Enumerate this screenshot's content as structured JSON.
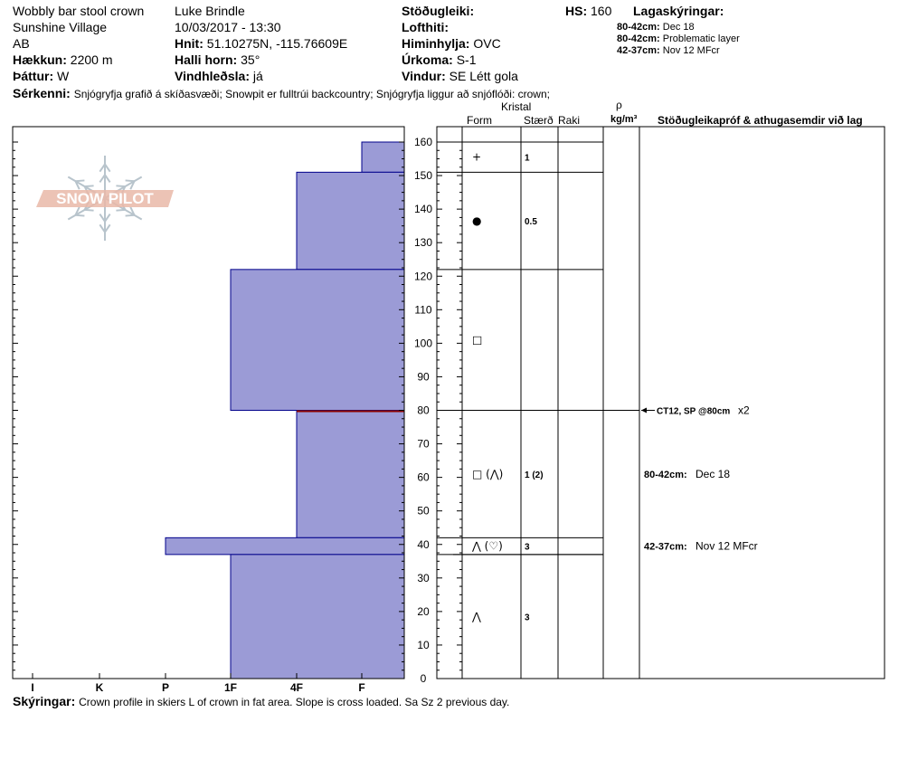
{
  "header": {
    "site_name": "Wobbly bar stool crown",
    "location": "Sunshine Village",
    "region": "AB",
    "elevation": {
      "label": "Hækkun:",
      "value": "2200 m"
    },
    "aspect": {
      "label": "Þáttur:",
      "value": "W"
    },
    "observer": "Luke Brindle",
    "datetime": "10/03/2017 - 13:30",
    "coords": {
      "label": "Hnit:",
      "value": "51.10275N, -115.76609E"
    },
    "slope": {
      "label": "Halli horn:",
      "value": "35°"
    },
    "wind_loading": {
      "label": "Vindhleðsla:",
      "value": "já"
    },
    "stability": {
      "label": "Stöðugleiki:",
      "value": ""
    },
    "air_temp": {
      "label": "Lofthiti:",
      "value": ""
    },
    "sky": {
      "label": "Himinhylja:",
      "value": "OVC"
    },
    "precip": {
      "label": "Úrkoma:",
      "value": "S-1"
    },
    "wind": {
      "label": "Vindur:",
      "value": "SE Létt gola"
    },
    "hs": {
      "label": "HS:",
      "value": "160"
    },
    "layer_notes": {
      "label": "Lagaskýringar:",
      "items": [
        {
          "range": "80-42cm:",
          "text": "Dec 18"
        },
        {
          "range": "80-42cm:",
          "text": "Problematic layer"
        },
        {
          "range": "42-37cm:",
          "text": "Nov 12 MFcr"
        }
      ]
    },
    "features": {
      "label": "Sérkenni:",
      "value": "Snjógryfja grafið á skíðasvæði; Snowpit er fulltrúi backcountry; Snjógryfja liggur að snjóflóði: crown;"
    }
  },
  "columns": {
    "crystal": "Kristal",
    "form": "Form",
    "size": "Stærð",
    "moisture": "Raki",
    "rho": "ρ",
    "density_unit": "kg/m³",
    "tests": "Stöðugleikapróf & athugasemdir við lag"
  },
  "logo_text": "SNOW PILOT",
  "footer": {
    "label": "Skýringar:",
    "value": "Crown profile in skiers L of crown in fat area. Slope is cross loaded. Sa Sz 2 previous day."
  },
  "colors": {
    "layer_fill": "#9b9bd6",
    "layer_stroke": "#00008b",
    "failure_line": "#8b0000",
    "logo": "#e9b8a8"
  },
  "chart_data": {
    "type": "bar",
    "orientation": "horizontal",
    "title": "",
    "xlabel": "",
    "ylabel": "",
    "ylim": [
      0,
      160
    ],
    "y_ticks": [
      0,
      10,
      20,
      30,
      40,
      50,
      60,
      70,
      80,
      90,
      100,
      110,
      120,
      130,
      140,
      150,
      160
    ],
    "hardness_scale": [
      "I",
      "K",
      "P",
      "1F",
      "4F",
      "F"
    ],
    "layers": [
      {
        "top": 160,
        "bottom": 151,
        "hardness": "F",
        "form": "+",
        "size": "1"
      },
      {
        "top": 151,
        "bottom": 122,
        "hardness": "4F",
        "form": "●",
        "size": "0.5"
      },
      {
        "top": 122,
        "bottom": 80,
        "hardness": "1F",
        "form": "□",
        "size": ""
      },
      {
        "top": 80,
        "bottom": 42,
        "hardness": "4F",
        "form": "□ (⋀)",
        "size": "1 (2)"
      },
      {
        "top": 42,
        "bottom": 37,
        "hardness": "P",
        "form": "⋀ (♡)",
        "size": "3"
      },
      {
        "top": 37,
        "bottom": 0,
        "hardness": "1F",
        "form": "⋀",
        "size": "3"
      }
    ],
    "failure_layer": 80,
    "tests": [
      {
        "depth": 80,
        "text": "CT12, SP @80cm",
        "suffix": "x2"
      }
    ],
    "annotations": [
      {
        "depth": 61,
        "range": "80-42cm:",
        "text": "Dec 18"
      },
      {
        "depth": 39.5,
        "range": "42-37cm:",
        "text": "Nov 12 MFcr"
      }
    ]
  }
}
